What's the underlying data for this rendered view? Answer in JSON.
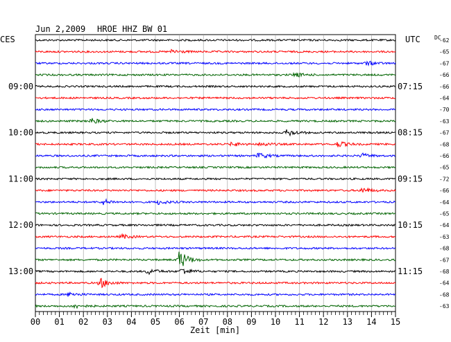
{
  "header": {
    "date": "Jun 2,2009",
    "station": "HROE HHZ BW 01",
    "left_tz": "CES",
    "right_tz": "UTC",
    "dc_label": "DC"
  },
  "chart_data": {
    "type": "line",
    "title": "Jun 2,2009   HROE HHZ BW 01",
    "xlabel": "Zeit [min]",
    "xlim": [
      0,
      15
    ],
    "x_ticks": [
      "00",
      "01",
      "02",
      "03",
      "04",
      "05",
      "06",
      "07",
      "08",
      "09",
      "10",
      "11",
      "12",
      "13",
      "14",
      "15"
    ],
    "grid": true,
    "left_hour_labels": [
      {
        "row": 4,
        "label": "09:00"
      },
      {
        "row": 8,
        "label": "10:00"
      },
      {
        "row": 12,
        "label": "11:00"
      },
      {
        "row": 16,
        "label": "12:00"
      },
      {
        "row": 20,
        "label": "13:00"
      }
    ],
    "right_hour_labels": [
      {
        "row": 4,
        "label": "07:15"
      },
      {
        "row": 8,
        "label": "08:15"
      },
      {
        "row": 12,
        "label": "09:15"
      },
      {
        "row": 16,
        "label": "10:15"
      },
      {
        "row": 20,
        "label": "11:15"
      }
    ],
    "row_colors": [
      "#000000",
      "#ff0000",
      "#0000ff",
      "#006400"
    ],
    "dc_offsets": [
      -62,
      -65,
      -67,
      -66,
      -66,
      -64,
      -70,
      -63,
      -67,
      -68,
      -66,
      -65,
      -72,
      -66,
      -64,
      -65,
      -64,
      -63,
      -68,
      -67,
      -68,
      -64,
      -68,
      -63
    ],
    "events": [
      {
        "row": 1,
        "minute": 5.7,
        "amplitude": 3
      },
      {
        "row": 2,
        "minute": 13.8,
        "amplitude": 3
      },
      {
        "row": 3,
        "minute": 10.8,
        "amplitude": 3
      },
      {
        "row": 7,
        "minute": 2.3,
        "amplitude": 4
      },
      {
        "row": 8,
        "minute": 10.5,
        "amplitude": 5
      },
      {
        "row": 9,
        "minute": 8.2,
        "amplitude": 3
      },
      {
        "row": 9,
        "minute": 9.4,
        "amplitude": 3
      },
      {
        "row": 9,
        "minute": 12.6,
        "amplitude": 4
      },
      {
        "row": 10,
        "minute": 9.3,
        "amplitude": 4
      },
      {
        "row": 10,
        "minute": 13.6,
        "amplitude": 3
      },
      {
        "row": 13,
        "minute": 13.6,
        "amplitude": 4
      },
      {
        "row": 14,
        "minute": 2.8,
        "amplitude": 4
      },
      {
        "row": 14,
        "minute": 5.1,
        "amplitude": 3
      },
      {
        "row": 17,
        "minute": 3.6,
        "amplitude": 3
      },
      {
        "row": 19,
        "minute": 6.0,
        "amplitude": 14
      },
      {
        "row": 20,
        "minute": 4.7,
        "amplitude": 4
      },
      {
        "row": 20,
        "minute": 6.1,
        "amplitude": 5
      },
      {
        "row": 21,
        "minute": 2.7,
        "amplitude": 7
      },
      {
        "row": 22,
        "minute": 1.4,
        "amplitude": 3
      },
      {
        "row": 23,
        "minute": 1.6,
        "amplitude": 3
      }
    ]
  }
}
